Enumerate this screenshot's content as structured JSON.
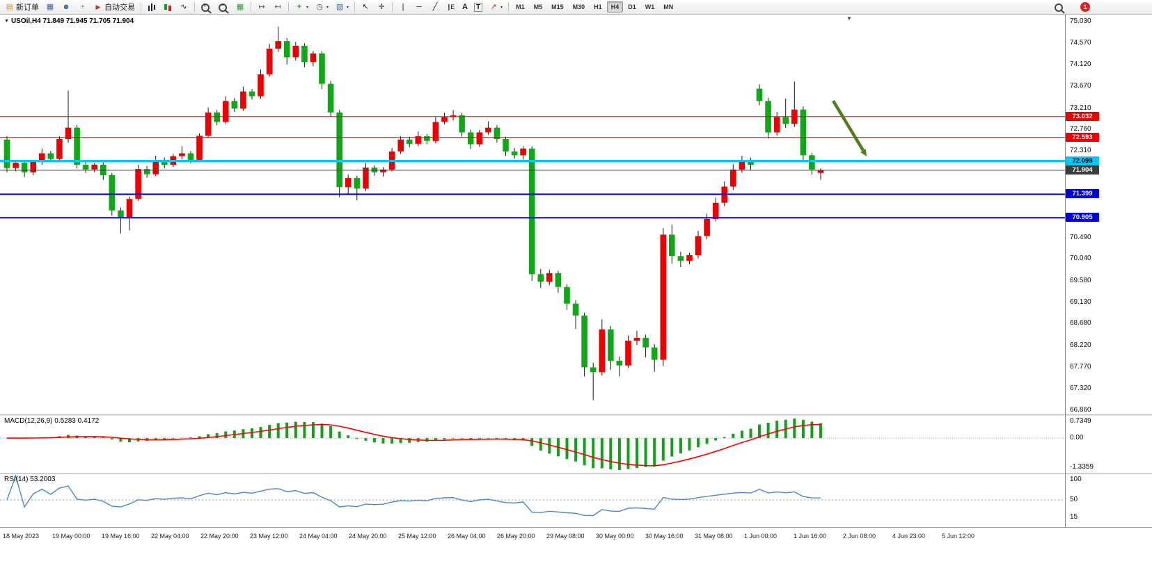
{
  "toolbar": {
    "new_order": "新订单",
    "auto_trading": "自动交易",
    "text_tool": "A",
    "label_tool": "T",
    "timeframes": [
      "M1",
      "M5",
      "M15",
      "M30",
      "H1",
      "H4",
      "D1",
      "W1",
      "MN"
    ],
    "active_timeframe": "H4",
    "notification_badge": "1"
  },
  "icons": {
    "new-order": "▤",
    "terminal": "▦",
    "market-watch": "☻",
    "data-window": "◔",
    "autotrade": "▶",
    "line-chart": "∿",
    "tile": "▦",
    "auto-scroll": "↦",
    "chart-shift": "↤",
    "new-chart": "+",
    "clock": "◷",
    "template": "▧",
    "cursor": "↖",
    "crosshair": "✛",
    "vline": "|",
    "hline": "─",
    "trendline": "╱",
    "channel": "∥E",
    "shapes": "↗",
    "caret": "▾",
    "title-marker": "▼",
    "shift-marker": "▼"
  },
  "chart_data": {
    "type": "candlestick",
    "symbol": "USOil",
    "period": "H4",
    "title": "USOil,H4  71.849 71.945 71.705 71.904",
    "quote": {
      "open": "71.849",
      "high": "71.945",
      "low": "71.705",
      "close": "71.904"
    },
    "colors": {
      "up": "#ee0000",
      "down": "#0fa816",
      "wick": "#151515"
    },
    "price_axis_ticks": [
      "75.030",
      "74.570",
      "74.120",
      "73.670",
      "73.210",
      "72.760",
      "72.310",
      "70.490",
      "70.040",
      "69.580",
      "69.130",
      "68.680",
      "68.220",
      "67.770",
      "67.320",
      "66.860"
    ],
    "hlines": [
      {
        "price": 73.032,
        "label": "73.032",
        "color": "#f00000",
        "width": 1,
        "text_color": "#ffffff",
        "role": "resistance-line"
      },
      {
        "price": 72.593,
        "label": "72.593",
        "color": "#f00000",
        "width": 1,
        "text_color": "#ffffff",
        "role": "resistance-line"
      },
      {
        "price": 72.099,
        "label": "72.099",
        "color": "#00c8ff",
        "width": 3,
        "text_color": "#000000",
        "role": "pivot-line"
      },
      {
        "price": 71.904,
        "label": "71.904",
        "color": "#3c3c3c",
        "width": 1,
        "text_color": "#ffffff",
        "role": "current-price-line"
      },
      {
        "price": 71.399,
        "label": "71.399",
        "color": "#0000d8",
        "width": 2,
        "text_color": "#ffffff",
        "role": "support-line"
      },
      {
        "price": 70.905,
        "label": "70.905",
        "color": "#0000d8",
        "width": 2,
        "text_color": "#ffffff",
        "role": "support-line"
      }
    ],
    "annotation_arrow": {
      "color": "#4e7d1d",
      "direction": "down-right"
    },
    "time_labels": [
      "18 May 2023",
      "19 May 00:00",
      "19 May 16:00",
      "22 May 04:00",
      "22 May 20:00",
      "23 May 12:00",
      "24 May 04:00",
      "24 May 20:00",
      "25 May 12:00",
      "26 May 04:00",
      "26 May 20:00",
      "29 May 08:00",
      "30 May 00:00",
      "30 May 16:00",
      "31 May 08:00",
      "1 Jun 00:00",
      "1 Jun 16:00",
      "2 Jun 08:00",
      "4 Jun 23:00",
      "5 Jun 12:00"
    ],
    "candles": [
      [
        72.55,
        72.62,
        71.86,
        71.95
      ],
      [
        71.95,
        72.1,
        71.88,
        72.06
      ],
      [
        72.06,
        72.1,
        71.76,
        71.86
      ],
      [
        71.86,
        72.12,
        71.8,
        72.08
      ],
      [
        72.08,
        72.36,
        72.02,
        72.26
      ],
      [
        72.26,
        72.31,
        72.07,
        72.14
      ],
      [
        72.14,
        72.62,
        72.1,
        72.56
      ],
      [
        72.56,
        73.58,
        72.48,
        72.8
      ],
      [
        72.8,
        72.86,
        71.94,
        72.02
      ],
      [
        72.02,
        72.12,
        71.85,
        71.92
      ],
      [
        71.92,
        72.06,
        71.86,
        72.02
      ],
      [
        72.02,
        72.07,
        71.7,
        71.8
      ],
      [
        71.8,
        71.85,
        70.95,
        71.06
      ],
      [
        71.06,
        71.12,
        70.58,
        70.92
      ],
      [
        70.92,
        71.35,
        70.64,
        71.3
      ],
      [
        71.3,
        72.02,
        71.26,
        71.93
      ],
      [
        71.93,
        71.99,
        71.75,
        71.82
      ],
      [
        71.82,
        72.21,
        71.78,
        72.12
      ],
      [
        72.12,
        72.17,
        71.95,
        72.02
      ],
      [
        72.02,
        72.25,
        71.97,
        72.2
      ],
      [
        72.2,
        72.41,
        72.13,
        72.26
      ],
      [
        72.26,
        72.31,
        72.05,
        72.12
      ],
      [
        72.12,
        72.68,
        72.08,
        72.63
      ],
      [
        72.63,
        73.22,
        72.59,
        73.12
      ],
      [
        73.12,
        73.17,
        72.85,
        72.92
      ],
      [
        72.92,
        73.46,
        72.88,
        73.36
      ],
      [
        73.36,
        73.42,
        73.13,
        73.2
      ],
      [
        73.2,
        73.66,
        73.15,
        73.56
      ],
      [
        73.56,
        73.61,
        73.39,
        73.46
      ],
      [
        73.46,
        74.02,
        73.41,
        73.92
      ],
      [
        73.92,
        74.56,
        73.87,
        74.46
      ],
      [
        74.46,
        74.92,
        74.39,
        74.62
      ],
      [
        74.62,
        74.68,
        74.13,
        74.28
      ],
      [
        74.28,
        74.6,
        74.21,
        74.52
      ],
      [
        74.52,
        74.57,
        74.07,
        74.18
      ],
      [
        74.18,
        74.41,
        74.09,
        74.36
      ],
      [
        74.36,
        74.41,
        73.61,
        73.72
      ],
      [
        73.72,
        73.78,
        73.04,
        73.12
      ],
      [
        73.12,
        73.17,
        71.34,
        71.55
      ],
      [
        71.55,
        71.81,
        71.41,
        71.74
      ],
      [
        71.74,
        71.79,
        71.27,
        71.52
      ],
      [
        71.52,
        72.06,
        71.47,
        71.96
      ],
      [
        71.96,
        72.01,
        71.79,
        71.86
      ],
      [
        71.86,
        71.97,
        71.77,
        71.92
      ],
      [
        71.92,
        72.37,
        71.88,
        72.3
      ],
      [
        72.3,
        72.62,
        72.25,
        72.55
      ],
      [
        72.55,
        72.61,
        72.39,
        72.46
      ],
      [
        72.46,
        72.72,
        72.41,
        72.62
      ],
      [
        72.62,
        72.67,
        72.45,
        72.52
      ],
      [
        72.52,
        73.02,
        72.47,
        72.92
      ],
      [
        72.92,
        73.11,
        72.87,
        73.02
      ],
      [
        73.02,
        73.17,
        72.95,
        73.06
      ],
      [
        73.06,
        73.11,
        72.61,
        72.7
      ],
      [
        72.7,
        72.76,
        72.35,
        72.45
      ],
      [
        72.45,
        72.75,
        72.4,
        72.7
      ],
      [
        72.7,
        72.93,
        72.65,
        72.8
      ],
      [
        72.8,
        72.85,
        72.49,
        72.56
      ],
      [
        72.56,
        72.61,
        72.21,
        72.3
      ],
      [
        72.3,
        72.37,
        72.15,
        72.22
      ],
      [
        72.22,
        72.41,
        72.13,
        72.36
      ],
      [
        72.36,
        72.41,
        69.58,
        69.72
      ],
      [
        69.72,
        69.83,
        69.43,
        69.56
      ],
      [
        69.56,
        69.81,
        69.49,
        69.74
      ],
      [
        69.74,
        69.79,
        69.33,
        69.45
      ],
      [
        69.45,
        69.51,
        68.97,
        69.1
      ],
      [
        69.1,
        69.17,
        68.57,
        68.85
      ],
      [
        68.85,
        68.91,
        67.57,
        67.76
      ],
      [
        67.76,
        67.86,
        67.07,
        67.66
      ],
      [
        67.66,
        68.77,
        67.59,
        68.56
      ],
      [
        68.56,
        68.63,
        67.71,
        67.9
      ],
      [
        67.9,
        67.99,
        67.57,
        67.8
      ],
      [
        67.8,
        68.43,
        67.75,
        68.32
      ],
      [
        68.32,
        68.53,
        68.23,
        68.38
      ],
      [
        68.38,
        68.45,
        67.97,
        68.18
      ],
      [
        68.18,
        68.25,
        67.67,
        67.92
      ],
      [
        67.92,
        70.69,
        67.79,
        70.55
      ],
      [
        70.55,
        70.76,
        69.94,
        70.1
      ],
      [
        70.1,
        70.19,
        69.87,
        70.0
      ],
      [
        70.0,
        70.17,
        69.93,
        70.12
      ],
      [
        70.12,
        70.63,
        70.05,
        70.52
      ],
      [
        70.52,
        70.99,
        70.45,
        70.88
      ],
      [
        70.88,
        71.33,
        70.83,
        71.22
      ],
      [
        71.22,
        71.67,
        71.15,
        71.56
      ],
      [
        71.56,
        72.03,
        71.49,
        71.92
      ],
      [
        71.92,
        72.21,
        71.85,
        72.1
      ],
      [
        72.1,
        72.17,
        71.91,
        72.02
      ],
      [
        73.62,
        73.71,
        73.27,
        73.36
      ],
      [
        73.36,
        73.43,
        72.57,
        72.7
      ],
      [
        72.7,
        73.13,
        72.63,
        73.02
      ],
      [
        73.02,
        73.41,
        72.79,
        72.88
      ],
      [
        72.88,
        73.77,
        72.81,
        73.18
      ],
      [
        73.18,
        73.25,
        72.07,
        72.22
      ],
      [
        72.22,
        72.27,
        71.81,
        71.92
      ],
      [
        71.849,
        71.945,
        71.705,
        71.904
      ]
    ],
    "macd": {
      "label": "MACD(12,26,9) 0.5283 0.4172",
      "value": "0.5283",
      "signal_value": "0.4172",
      "fast": 12,
      "slow": 26,
      "signal": 9,
      "axis_labels": [
        "0.7349",
        "0.00",
        "-1.3359"
      ],
      "histogram_color": "#14a01a",
      "signal_color": "#ff0000"
    },
    "rsi": {
      "label": "RSI(14) 53.2003",
      "value": "53.2003",
      "periodN": 14,
      "level": 50,
      "axis_labels": [
        "100",
        "50",
        "15"
      ],
      "line_color": "#4a86c8"
    }
  }
}
